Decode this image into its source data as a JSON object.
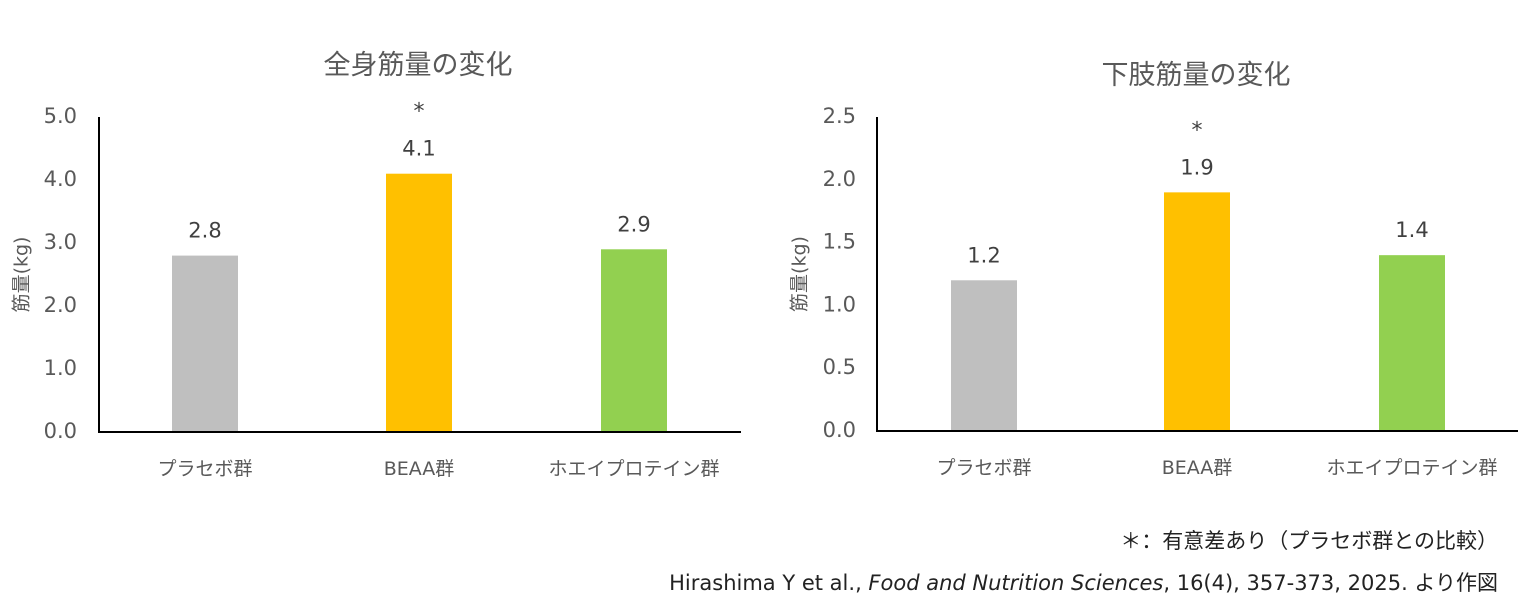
{
  "chart_data": [
    {
      "type": "bar",
      "title": "全身筋量の変化",
      "ylabel": "筋量(kg)",
      "ylim": [
        0,
        5.0
      ],
      "yticks": [
        "0.0",
        "1.0",
        "2.0",
        "3.0",
        "4.0",
        "5.0"
      ],
      "categories": [
        "プラセボ群",
        "BEAA群",
        "ホエイプロテイン群"
      ],
      "values": [
        2.8,
        4.1,
        2.9
      ],
      "value_labels": [
        "2.8",
        "4.1",
        "2.9"
      ],
      "significance": [
        "",
        "*",
        ""
      ],
      "colors": [
        "#bfbfbf",
        "#ffc000",
        "#92d050"
      ]
    },
    {
      "type": "bar",
      "title": "下肢筋量の変化",
      "ylabel": "筋量(kg)",
      "ylim": [
        0,
        2.5
      ],
      "yticks": [
        "0.0",
        "0.5",
        "1.0",
        "1.5",
        "2.0",
        "2.5"
      ],
      "categories": [
        "プラセボ群",
        "BEAA群",
        "ホエイプロテイン群"
      ],
      "values": [
        1.2,
        1.9,
        1.4
      ],
      "value_labels": [
        "1.2",
        "1.9",
        "1.4"
      ],
      "significance": [
        "",
        "*",
        ""
      ],
      "colors": [
        "#bfbfbf",
        "#ffc000",
        "#92d050"
      ]
    }
  ],
  "footnote": "＊：有意差あり（プラセボ群との比較）",
  "citation": {
    "authors": "Hirashima Y et al., ",
    "journal": "Food and Nutrition Sciences",
    "details": ", 16(4), 357-373, 2025. より作図"
  }
}
